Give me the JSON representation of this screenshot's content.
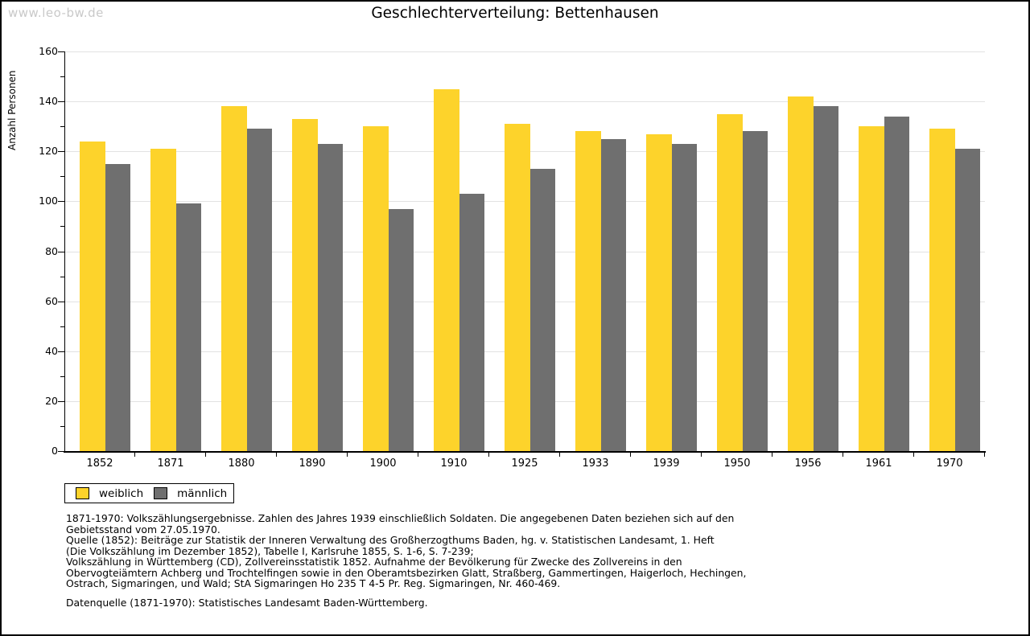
{
  "watermark": "www.leo-bw.de",
  "chart_data": {
    "type": "bar",
    "title": "Geschlechterverteilung: Bettenhausen",
    "ylabel": "Anzahl Personen",
    "xlabel": "",
    "ylim": [
      0,
      160
    ],
    "y_major_step": 20,
    "y_minor_step": 10,
    "grid": true,
    "legend_position": "bottom-left",
    "categories": [
      "1852",
      "1871",
      "1880",
      "1890",
      "1900",
      "1910",
      "1925",
      "1933",
      "1939",
      "1950",
      "1956",
      "1961",
      "1970"
    ],
    "series": [
      {
        "name": "weiblich",
        "color": "#fdd32b",
        "values": [
          124,
          121,
          138,
          133,
          130,
          145,
          131,
          128,
          127,
          135,
          142,
          130,
          129
        ]
      },
      {
        "name": "männlich",
        "color": "#6f6f6f",
        "values": [
          115,
          99,
          129,
          123,
          97,
          103,
          113,
          125,
          123,
          128,
          138,
          134,
          121
        ]
      }
    ],
    "axis_color": "#000000",
    "gridline_color": "#e2e2e2"
  },
  "footnotes": {
    "lines": [
      "1871-1970: Volkszählungsergebnisse. Zahlen des Jahres 1939 einschließlich Soldaten. Die angegebenen Daten beziehen sich auf den",
      "Gebietsstand vom 27.05.1970.",
      "Quelle (1852): Beiträge zur Statistik der Inneren Verwaltung des Großherzogthums Baden, hg. v. Statistischen Landesamt, 1. Heft",
      "(Die Volkszählung im Dezember 1852), Tabelle I, Karlsruhe 1855, S. 1-6, S. 7-239;",
      "Volkszählung in Württemberg (CD), Zollvereinsstatistik 1852. Aufnahme der Bevölkerung für Zwecke des Zollvereins in den",
      "Obervogteiämtern Achberg und Trochtelfingen sowie in den Oberamtsbezirken Glatt, Straßberg, Gammertingen, Haigerloch, Hechingen,",
      "Ostrach, Sigmaringen, und Wald; StA Sigmaringen Ho 235 T 4-5 Pr. Reg. Sigmaringen, Nr. 460-469."
    ],
    "source": "Datenquelle (1871-1970): Statistisches Landesamt Baden-Württemberg."
  }
}
